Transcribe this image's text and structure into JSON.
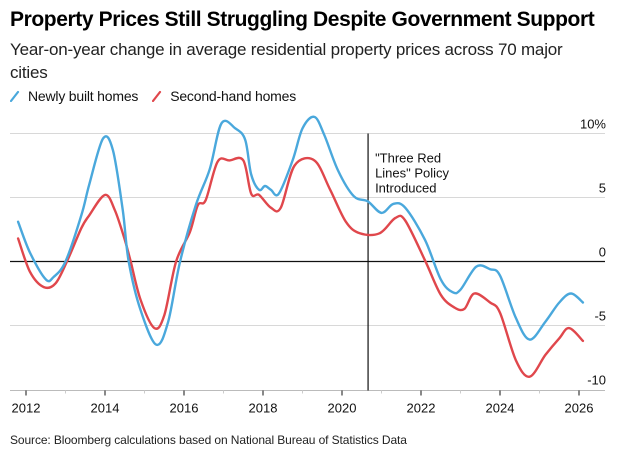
{
  "header": {
    "title": "Property Prices Still Struggling Despite Government Support",
    "subtitle": "Year-on-year change in average residential property prices across 70 major cities"
  },
  "legend": [
    {
      "label": "Newly built homes",
      "color": "#4aa8dc",
      "icon": "line-swatch-icon"
    },
    {
      "label": "Second-hand homes",
      "color": "#e0474c",
      "icon": "line-swatch-icon"
    }
  ],
  "footer": {
    "source": "Source: Bloomberg calculations based on National Bureau of Statistics Data"
  },
  "chart_data": {
    "type": "line",
    "title": "Property Prices Still Struggling Despite Government Support",
    "subtitle": "Year-on-year change in average residential property prices across 70 major cities",
    "xlabel": "",
    "ylabel": "",
    "xlim": [
      2011.6,
      2026.7
    ],
    "ylim": [
      -10,
      10
    ],
    "x_ticks": [
      2012,
      2014,
      2016,
      2018,
      2020,
      2022,
      2024,
      2026
    ],
    "x_tick_labels": [
      "2012",
      "2014",
      "2016",
      "2018",
      "2020",
      "2022",
      "2024",
      "2026"
    ],
    "y_ticks": [
      10,
      5,
      0,
      -5,
      -10
    ],
    "y_tick_labels": [
      "10%",
      "5",
      "0",
      "-5",
      "-10"
    ],
    "y_axis_side": "right",
    "grid": true,
    "legend_position": "top-left",
    "annotations": [
      {
        "x": 2020.66,
        "label_lines": [
          "\"Three Red",
          "Lines\" Policy",
          "Introduced"
        ],
        "type": "vertical-line"
      }
    ],
    "series": [
      {
        "name": "Newly built homes",
        "color": "#4aa8dc",
        "x": [
          2011.8,
          2012.1,
          2012.5,
          2012.7,
          2013.0,
          2013.4,
          2013.6,
          2013.95,
          2014.2,
          2014.45,
          2014.6,
          2014.9,
          2015.3,
          2015.6,
          2015.9,
          2016.3,
          2016.65,
          2016.95,
          2017.3,
          2017.55,
          2017.7,
          2017.9,
          2018.05,
          2018.2,
          2018.4,
          2018.75,
          2019.0,
          2019.3,
          2019.55,
          2019.9,
          2020.3,
          2020.65,
          2021.0,
          2021.3,
          2021.6,
          2022.1,
          2022.5,
          2022.8,
          2023.0,
          2023.4,
          2023.75,
          2024.0,
          2024.4,
          2024.75,
          2025.15,
          2025.5,
          2025.8,
          2026.1
        ],
        "values": [
          3.1,
          0.7,
          -1.4,
          -1.2,
          0.0,
          3.6,
          6.0,
          9.6,
          8.7,
          4.0,
          0.0,
          -3.8,
          -6.5,
          -4.7,
          0.0,
          4.4,
          7.2,
          10.8,
          10.4,
          9.5,
          6.8,
          5.6,
          5.9,
          5.6,
          5.3,
          7.9,
          10.4,
          11.3,
          9.9,
          7.1,
          5.1,
          4.7,
          3.8,
          4.5,
          4.2,
          1.7,
          -1.4,
          -2.4,
          -2.2,
          -0.4,
          -0.6,
          -1.1,
          -4.4,
          -6.1,
          -4.7,
          -3.2,
          -2.5,
          -3.2
        ]
      },
      {
        "name": "Second-hand homes",
        "color": "#e0474c",
        "x": [
          2011.8,
          2012.1,
          2012.45,
          2012.75,
          2013.05,
          2013.4,
          2013.6,
          2014.0,
          2014.25,
          2014.5,
          2014.65,
          2014.9,
          2015.25,
          2015.5,
          2015.8,
          2016.15,
          2016.35,
          2016.55,
          2016.85,
          2017.15,
          2017.5,
          2017.7,
          2017.9,
          2018.2,
          2018.45,
          2018.8,
          2019.3,
          2019.7,
          2020.1,
          2020.45,
          2020.95,
          2021.35,
          2021.6,
          2022.1,
          2022.5,
          2022.85,
          2023.1,
          2023.35,
          2023.75,
          2024.0,
          2024.4,
          2024.75,
          2025.15,
          2025.5,
          2025.75,
          2026.1
        ],
        "values": [
          1.8,
          -0.8,
          -2.0,
          -1.7,
          0.1,
          2.6,
          3.6,
          5.2,
          4.0,
          1.7,
          0.0,
          -3.0,
          -5.2,
          -4.2,
          0.0,
          2.3,
          4.4,
          4.8,
          7.8,
          7.9,
          7.9,
          5.3,
          5.2,
          4.2,
          4.2,
          7.5,
          7.9,
          5.6,
          3.1,
          2.2,
          2.2,
          3.4,
          3.2,
          0.1,
          -2.6,
          -3.6,
          -3.7,
          -2.5,
          -3.2,
          -4.0,
          -7.7,
          -9.0,
          -7.3,
          -6.0,
          -5.2,
          -6.2
        ]
      }
    ]
  }
}
